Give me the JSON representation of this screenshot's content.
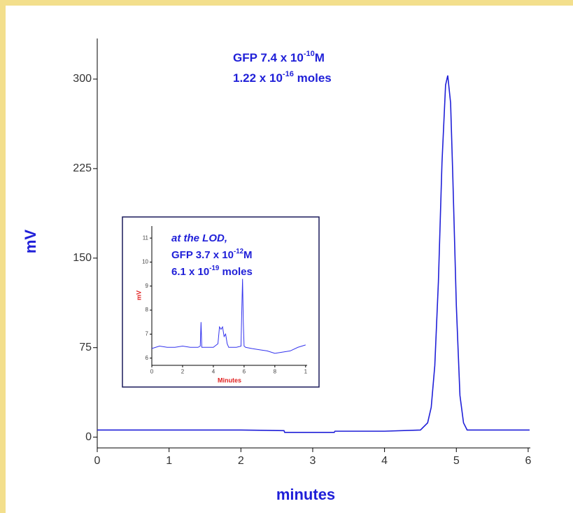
{
  "chart_data": [
    {
      "type": "line",
      "x_label": "minutes",
      "y_label": "mV",
      "annotations": [
        {
          "text": "GFP 7.4 x 10",
          "sup": "-10",
          "after": "M"
        },
        {
          "text": "1.22 x 10",
          "sup": "-16",
          "after": " moles"
        }
      ],
      "x": [
        0,
        0.5,
        1,
        1.5,
        2,
        2.6,
        2.61,
        3.3,
        3.31,
        4,
        4.5,
        4.6,
        4.65,
        4.7,
        4.75,
        4.8,
        4.85,
        4.88,
        4.92,
        4.95,
        5.0,
        5.05,
        5.1,
        5.15,
        6.02
      ],
      "series": [
        {
          "color": "#1f1fd8",
          "values": [
            6,
            6,
            6,
            6,
            6,
            5.5,
            4,
            4,
            5,
            5,
            6,
            12,
            25,
            60,
            130,
            230,
            295,
            303,
            280,
            220,
            110,
            35,
            12,
            6,
            6
          ]
        }
      ],
      "xlim": [
        0,
        6.03
      ],
      "xticks": [
        0,
        1,
        2,
        3,
        4,
        5,
        6
      ],
      "ylim": [
        -9,
        334
      ],
      "yticks": [
        0,
        75,
        150,
        225,
        300
      ]
    },
    {
      "type": "line",
      "x_label": "Minutes",
      "y_label": "mV",
      "annotations": [
        {
          "text": "at the LOD,",
          "italic": true
        },
        {
          "text": "GFP 3.7 x 10",
          "sup": "-12",
          "after": "M"
        },
        {
          "text": "6.1 x 10",
          "sup": "-19",
          "after": " moles"
        }
      ],
      "x": [
        0,
        0.5,
        1,
        1.5,
        2,
        2.5,
        3,
        3.15,
        3.2,
        3.25,
        3.5,
        4,
        4.3,
        4.4,
        4.5,
        4.6,
        4.7,
        4.8,
        4.9,
        5.0,
        5.5,
        5.8,
        5.85,
        5.9,
        5.95,
        6.0,
        6.1,
        6.5,
        7,
        7.5,
        8,
        8.5,
        9,
        9.5,
        10
      ],
      "series": [
        {
          "color": "#3333ee",
          "values": [
            6.4,
            6.5,
            6.45,
            6.45,
            6.5,
            6.45,
            6.45,
            6.5,
            7.5,
            6.45,
            6.45,
            6.45,
            6.6,
            7.3,
            7.2,
            7.3,
            6.9,
            7.0,
            6.6,
            6.45,
            6.45,
            6.5,
            8.0,
            9.3,
            7.5,
            6.5,
            6.45,
            6.4,
            6.35,
            6.3,
            6.2,
            6.25,
            6.3,
            6.45,
            6.55
          ]
        }
      ],
      "xlim": [
        0,
        10.1
      ],
      "xticks": [
        0,
        2,
        4,
        6,
        8,
        {
          "value": 10,
          "label": "1"
        }
      ],
      "ylim": [
        5.7,
        11.5
      ],
      "yticks": [
        6,
        7,
        8,
        9,
        10,
        11
      ]
    }
  ]
}
